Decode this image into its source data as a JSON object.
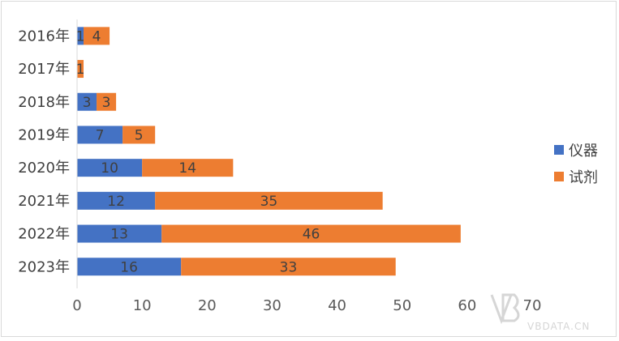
{
  "chart_data": {
    "type": "bar",
    "orientation": "horizontal",
    "stacked": true,
    "categories": [
      "2016年",
      "2017年",
      "2018年",
      "2019年",
      "2020年",
      "2021年",
      "2022年",
      "2023年"
    ],
    "series": [
      {
        "name": "仪器",
        "color": "#4472c4",
        "values": [
          1,
          0,
          3,
          7,
          10,
          12,
          13,
          16
        ]
      },
      {
        "name": "试剂",
        "color": "#ed7d31",
        "values": [
          4,
          1,
          3,
          5,
          14,
          35,
          46,
          33
        ]
      }
    ],
    "xlim": [
      0,
      70
    ],
    "xticks": [
      0,
      10,
      20,
      30,
      40,
      50,
      60,
      70
    ],
    "grid": false,
    "legend_position": "right"
  },
  "watermark": {
    "logo": "VB动脉网",
    "text": "VBDATA.CN"
  }
}
